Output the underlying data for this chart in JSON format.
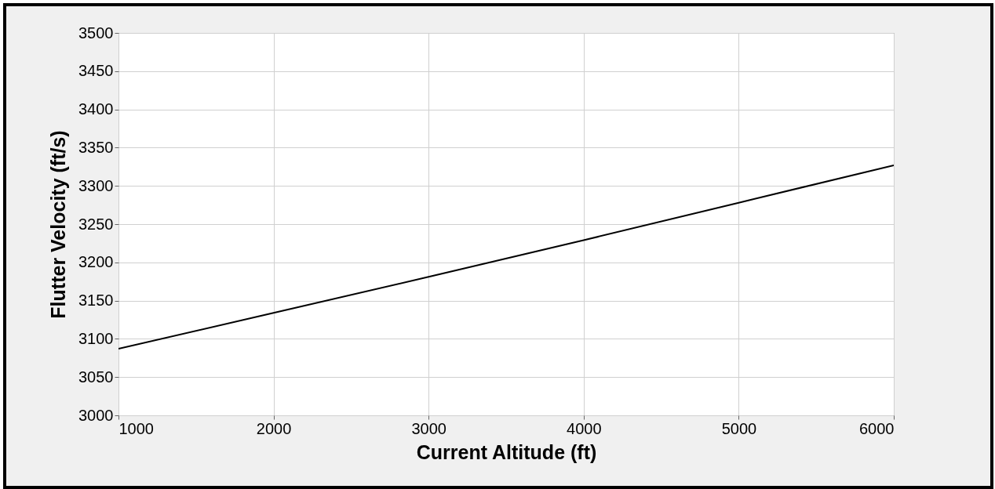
{
  "chart_data": {
    "type": "line",
    "xlabel": "Current Altitude (ft)",
    "ylabel": "Flutter Velocity (ft/s)",
    "x": [
      1000,
      2000,
      3000,
      4000,
      5000,
      6000
    ],
    "series": [
      {
        "color": "#000000",
        "values": [
          3087,
          3134,
          3181,
          3229,
          3278,
          3327
        ]
      }
    ],
    "xlim": [
      1000,
      6000
    ],
    "xticks": [
      1000,
      2000,
      3000,
      4000,
      5000,
      6000
    ],
    "ylim": [
      3000,
      3500
    ],
    "yticks": [
      3000,
      3050,
      3100,
      3150,
      3200,
      3250,
      3300,
      3350,
      3400,
      3450,
      3500
    ],
    "grid": true,
    "marker": "none",
    "line_style": "solid"
  }
}
